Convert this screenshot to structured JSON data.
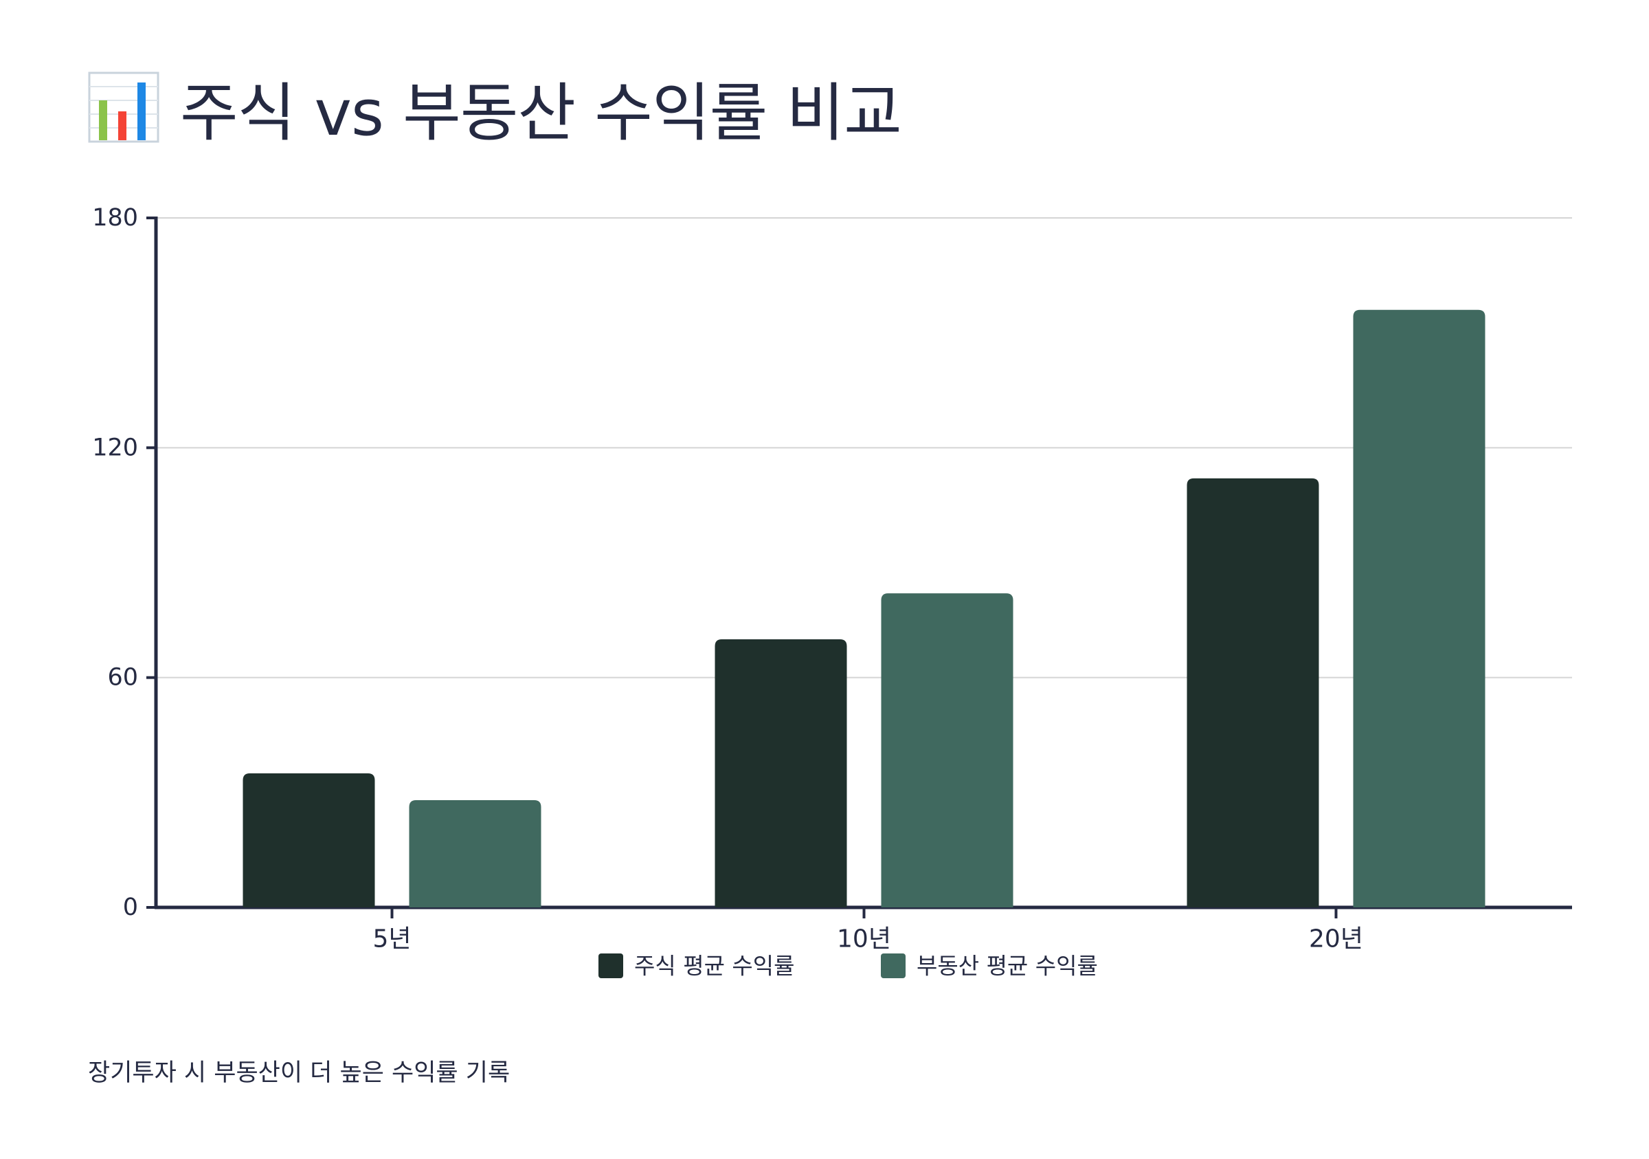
{
  "title": "주식 vs 부동산 수익률 비교",
  "title_icon": "bar-chart-emoji-icon",
  "footnote": "장기투자 시 부동산이 더 높은 수익률 기록",
  "colors": {
    "text": "#252a42",
    "axis": "#252a42",
    "grid": "#d5d5d5",
    "background": "#ffffff"
  },
  "chart_data": {
    "type": "bar",
    "title": "주식 vs 부동산 수익률 비교",
    "categories": [
      "5년",
      "10년",
      "20년"
    ],
    "series": [
      {
        "name": "주식 평균 수익률",
        "color": "#1f302c",
        "values": [
          35,
          70,
          112
        ]
      },
      {
        "name": "부동산 평균 수익률",
        "color": "#40695f",
        "values": [
          28,
          82,
          156
        ]
      }
    ],
    "ylim": [
      0,
      180
    ],
    "yticks": [
      0,
      60,
      120,
      180
    ],
    "xlabel": "",
    "ylabel": "",
    "grid": true,
    "legend_position": "bottom-center"
  }
}
